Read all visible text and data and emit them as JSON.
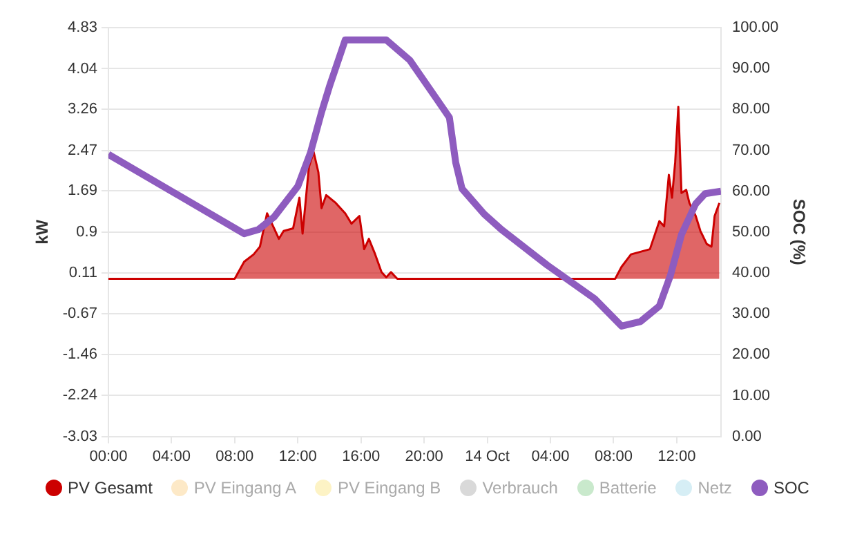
{
  "chart_data": {
    "type": "line",
    "ylabel": "kW",
    "y2label": "SOC (%)",
    "xlim": [
      "--10-13T00:00",
      "--10-14T14:48"
    ],
    "xticks": [
      {
        "value": "--10-13T00:00",
        "label": "00:00"
      },
      {
        "value": "--10-13T04:00",
        "label": "04:00"
      },
      {
        "value": "--10-13T08:00",
        "label": "08:00"
      },
      {
        "value": "--10-13T12:00",
        "label": "12:00"
      },
      {
        "value": "--10-13T16:00",
        "label": "16:00"
      },
      {
        "value": "--10-13T20:00",
        "label": "20:00"
      },
      {
        "value": "--10-14T00:00",
        "label": "14 Oct"
      },
      {
        "value": "--10-14T04:00",
        "label": "04:00"
      },
      {
        "value": "--10-14T08:00",
        "label": "08:00"
      },
      {
        "value": "--10-14T12:00",
        "label": "12:00"
      }
    ],
    "ylim": [
      -3.03,
      4.83
    ],
    "yticks": [
      -3.03,
      -2.24,
      -1.46,
      -0.67,
      0.11,
      0.9,
      1.69,
      2.47,
      3.26,
      4.04,
      4.83
    ],
    "y2lim": [
      0,
      100
    ],
    "y2ticks": [
      {
        "value": 0,
        "label": "0.00"
      },
      {
        "value": 10,
        "label": "10.00"
      },
      {
        "value": 20,
        "label": "20.00"
      },
      {
        "value": 30,
        "label": "30.00"
      },
      {
        "value": 40,
        "label": "40.00"
      },
      {
        "value": 50,
        "label": "50.00"
      },
      {
        "value": 60,
        "label": "60.00"
      },
      {
        "value": 70,
        "label": "70.00"
      },
      {
        "value": 80,
        "label": "80.00"
      },
      {
        "value": 90,
        "label": "90.00"
      },
      {
        "value": 100,
        "label": "100.00"
      }
    ],
    "grid": "y",
    "legend": "bottom",
    "marker": "none",
    "line_style": "solid",
    "series": [
      {
        "name": "PV Gesamt",
        "type": "area",
        "color": "#cc0000",
        "x": [
          "--10-13T00:00",
          "--10-13T08:00",
          "--10-13T08:36",
          "--10-13T09:12",
          "--10-13T09:36",
          "--10-13T10:03",
          "--10-13T10:30",
          "--10-13T10:48",
          "--10-13T11:06",
          "--10-13T11:42",
          "--10-13T12:06",
          "--10-13T12:18",
          "--10-13T12:42",
          "--10-13T13:00",
          "--10-13T13:18",
          "--10-13T13:30",
          "--10-13T13:48",
          "--10-13T14:24",
          "--10-13T15:00",
          "--10-13T15:24",
          "--10-13T15:54",
          "--10-13T16:12",
          "--10-13T16:30",
          "--10-13T16:54",
          "--10-13T17:18",
          "--10-13T17:36",
          "--10-13T17:54",
          "--10-13T18:18",
          "--10-14T08:06",
          "--10-14T08:30",
          "--10-14T09:06",
          "--10-14T09:42",
          "--10-14T10:18",
          "--10-14T10:54",
          "--10-14T11:12",
          "--10-14T11:30",
          "--10-14T11:42",
          "--10-14T11:54",
          "--10-14T12:06",
          "--10-14T12:18",
          "--10-14T12:36",
          "--10-14T12:48",
          "--10-14T13:12",
          "--10-14T13:30",
          "--10-14T13:54",
          "--10-14T14:12",
          "--10-14T14:24",
          "--10-14T14:42"
        ],
        "values": [
          0,
          0,
          0.33,
          0.47,
          0.62,
          1.26,
          0.97,
          0.77,
          0.92,
          0.97,
          1.56,
          0.87,
          2.15,
          2.44,
          2.05,
          1.36,
          1.61,
          1.46,
          1.26,
          1.06,
          1.21,
          0.57,
          0.77,
          0.47,
          0.13,
          0.03,
          0.13,
          0,
          0,
          0.23,
          0.47,
          0.52,
          0.57,
          1.11,
          1.01,
          2.0,
          1.56,
          2.24,
          3.31,
          1.65,
          1.71,
          1.46,
          1.21,
          0.92,
          0.67,
          0.62,
          1.21,
          1.46
        ]
      },
      {
        "name": "PV Eingang A",
        "color": "#fde9c7"
      },
      {
        "name": "PV Eingang B",
        "color": "#fdf3c5"
      },
      {
        "name": "Verbrauch",
        "color": "#d9d9d9"
      },
      {
        "name": "Batterie",
        "color": "#c9e9cc"
      },
      {
        "name": "Netz",
        "color": "#d6eef5"
      },
      {
        "name": "SOC",
        "type": "line",
        "axis": "y2",
        "color": "#8e5cbf",
        "x": [
          "--10-13T00:00",
          "--10-13T08:36",
          "--10-13T09:30",
          "--10-13T10:30",
          "--10-13T12:00",
          "--10-13T12:48",
          "--10-13T13:30",
          "--10-13T14:00",
          "--10-13T15:00",
          "--10-13T17:36",
          "--10-13T19:06",
          "--10-13T20:48",
          "--10-13T21:36",
          "--10-13T22:00",
          "--10-13T22:24",
          "--10-13T23:48",
          "--10-14T00:54",
          "--10-14T03:48",
          "--10-14T06:48",
          "--10-14T08:30",
          "--10-14T09:42",
          "--10-14T10:54",
          "--10-14T11:36",
          "--10-14T12:18",
          "--10-14T13:12",
          "--10-14T13:48",
          "--10-14T14:48"
        ],
        "values": [
          69,
          49.6,
          50.6,
          53.7,
          61.2,
          69.4,
          79.3,
          85.6,
          97,
          97,
          92,
          82.5,
          78,
          67,
          60.6,
          54.4,
          50.6,
          41.9,
          33.7,
          27,
          28.1,
          31.9,
          39.4,
          49.4,
          56.9,
          59.4,
          60
        ]
      }
    ]
  }
}
